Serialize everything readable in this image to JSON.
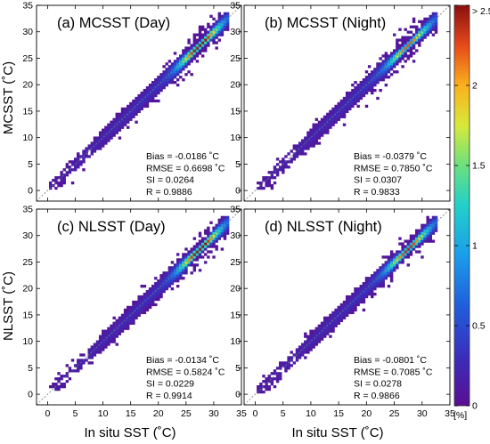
{
  "figure": {
    "x_axis_label": "In situ SST (˚C)",
    "colorbar_unit": "[%]",
    "colorbar_ticks": [
      "0",
      "0.5",
      "1",
      "1.5",
      "2",
      "> 2.5"
    ]
  },
  "chart_data": [
    {
      "type": "heatmap",
      "title": "(a) MCSST (Day)",
      "xlabel": "",
      "ylabel": "MCSST (˚C)",
      "xlim": [
        -2,
        35
      ],
      "ylim": [
        -2,
        35
      ],
      "xticks": [
        "0",
        "5",
        "10",
        "15",
        "20",
        "25",
        "30",
        "35"
      ],
      "yticks": [
        "0",
        "5",
        "10",
        "15",
        "20",
        "25",
        "30",
        "35"
      ],
      "one_to_one_line": true,
      "stats": [
        "Bias = -0.0186 ˚C",
        "RMSE = 0.6698 ˚C",
        "SI = 0.0264",
        "R = 0.9886"
      ],
      "density_peak": {
        "x": 27.5,
        "y": 27.5,
        "percent": 2.5
      }
    },
    {
      "type": "heatmap",
      "title": "(b) MCSST (Night)",
      "xlabel": "",
      "ylabel": "",
      "xlim": [
        -2,
        35
      ],
      "ylim": [
        -2,
        35
      ],
      "xticks": [
        "0",
        "5",
        "10",
        "15",
        "20",
        "25",
        "30",
        "35"
      ],
      "yticks": [
        "0",
        "5",
        "10",
        "15",
        "20",
        "25",
        "30",
        "35"
      ],
      "one_to_one_line": true,
      "stats": [
        "Bias = -0.0379 ˚C",
        "RMSE = 0.7850 ˚C",
        "SI = 0.0307",
        "R = 0.9833"
      ],
      "density_peak": {
        "x": 27.5,
        "y": 27.5,
        "percent": 2.0
      }
    },
    {
      "type": "heatmap",
      "title": "(c) NLSST (Day)",
      "xlabel": "In situ SST (˚C)",
      "ylabel": "NLSST (˚C)",
      "xlim": [
        -2,
        35
      ],
      "ylim": [
        -2,
        35
      ],
      "xticks": [
        "0",
        "5",
        "10",
        "15",
        "20",
        "25",
        "30",
        "35"
      ],
      "yticks": [
        "0",
        "5",
        "10",
        "15",
        "20",
        "25",
        "30",
        "35"
      ],
      "one_to_one_line": true,
      "stats": [
        "Bias = -0.0134 ˚C",
        "RMSE = 0.5824 ˚C",
        "SI = 0.0229",
        "R = 0.9914"
      ],
      "density_peak": {
        "x": 27.5,
        "y": 27.5,
        "percent": 2.5
      }
    },
    {
      "type": "heatmap",
      "title": "(d) NLSST (Night)",
      "xlabel": "In situ SST (˚C)",
      "ylabel": "",
      "xlim": [
        -2,
        35
      ],
      "ylim": [
        -2,
        35
      ],
      "xticks": [
        "0",
        "5",
        "10",
        "15",
        "20",
        "25",
        "30",
        "35"
      ],
      "yticks": [
        "0",
        "5",
        "10",
        "15",
        "20",
        "25",
        "30",
        "35"
      ],
      "one_to_one_line": true,
      "stats": [
        "Bias = -0.0801 ˚C",
        "RMSE = 0.7085 ˚C",
        "SI = 0.0278",
        "R = 0.9866"
      ],
      "density_peak": {
        "x": 27.5,
        "y": 27.5,
        "percent": 2.2
      }
    }
  ]
}
